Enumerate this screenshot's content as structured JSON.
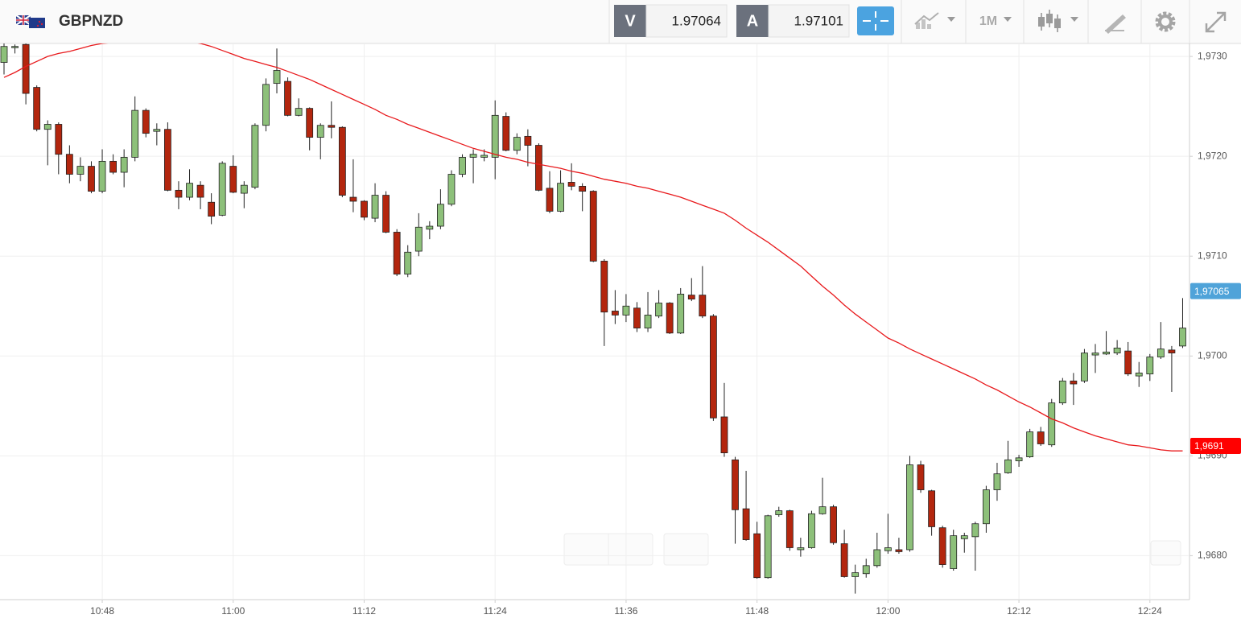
{
  "toolbar": {
    "symbol": "GBPNZD",
    "bid_label": "V",
    "bid": 1.97064,
    "ask_label": "A",
    "ask": 1.97101,
    "timeframe": "1M"
  },
  "chart_data": {
    "type": "candlestick",
    "categories": [
      null,
      null,
      null,
      null,
      null,
      null,
      null,
      null,
      null,
      "10:48",
      null,
      null,
      null,
      null,
      null,
      null,
      null,
      null,
      null,
      null,
      null,
      "11:00",
      null,
      null,
      null,
      null,
      null,
      null,
      null,
      null,
      null,
      null,
      null,
      "11:12",
      null,
      null,
      null,
      null,
      null,
      null,
      null,
      null,
      null,
      null,
      null,
      "11:24",
      null,
      null,
      null,
      null,
      null,
      null,
      null,
      null,
      null,
      null,
      null,
      "11:36",
      null,
      null,
      null,
      null,
      null,
      null,
      null,
      null,
      null,
      null,
      null,
      "11:48",
      null,
      null,
      null,
      null,
      null,
      null,
      null,
      null,
      null,
      null,
      null,
      "12:00",
      null,
      null,
      null,
      null,
      null,
      null,
      null,
      null,
      null,
      null,
      null,
      "12:12",
      null,
      null,
      null,
      null,
      null,
      null,
      null,
      null,
      null,
      null,
      null,
      "12:24",
      null,
      null,
      null
    ],
    "open": [
      1.97294,
      1.9731,
      1.97312,
      1.97269,
      1.97227,
      1.97232,
      1.97202,
      1.97182,
      1.9719,
      1.97165,
      1.97195,
      1.97184,
      1.97199,
      1.97246,
      1.97225,
      1.97227,
      1.97166,
      1.97159,
      1.97171,
      1.97154,
      1.97141,
      1.9719,
      1.97163,
      1.97169,
      1.97231,
      1.97273,
      1.97275,
      1.97241,
      1.97248,
      1.97219,
      1.97231,
      1.97229,
      1.97159,
      1.97155,
      1.97138,
      1.97161,
      1.97124,
      1.97082,
      1.97105,
      1.97127,
      1.9713,
      1.97152,
      1.97182,
      1.97199,
      1.97199,
      1.97199,
      1.9724,
      1.97206,
      1.9722,
      1.97211,
      1.97168,
      1.97145,
      1.97174,
      1.9717,
      1.97165,
      1.97095,
      1.97045,
      1.97041,
      1.97048,
      1.97028,
      1.9704,
      1.97053,
      1.97023,
      1.97061,
      1.97061,
      1.9704,
      1.96939,
      1.96896,
      1.96847,
      1.96822,
      1.96778,
      1.96841,
      1.96845,
      1.96806,
      1.96808,
      1.96842,
      1.96849,
      1.96812,
      1.96779,
      1.96782,
      1.9679,
      1.96805,
      1.96806,
      1.96806,
      1.96891,
      1.96865,
      1.96828,
      1.96787,
      1.96817,
      1.96819,
      1.96832,
      1.96866,
      1.96883,
      1.96895,
      1.96899,
      1.96924,
      1.96911,
      1.96953,
      1.96975,
      1.96975,
      1.97001,
      1.97002,
      1.97003,
      1.97005,
      1.9698,
      1.96982,
      1.96999,
      1.97006,
      1.9701
    ],
    "high": [
      1.97315,
      1.97312,
      1.97318,
      1.97271,
      1.97236,
      1.97234,
      1.97211,
      1.97199,
      1.97195,
      1.97207,
      1.97202,
      1.97207,
      1.9726,
      1.97248,
      1.97233,
      1.97234,
      1.97175,
      1.97187,
      1.97175,
      1.97163,
      1.97195,
      1.97201,
      1.97175,
      1.97233,
      1.97278,
      1.97308,
      1.97279,
      1.97258,
      1.97249,
      1.97233,
      1.97255,
      1.9723,
      1.97197,
      1.97156,
      1.97173,
      1.97165,
      1.97127,
      1.97111,
      1.97143,
      1.97135,
      1.97167,
      1.97186,
      1.97202,
      1.97207,
      1.97207,
      1.97256,
      1.97244,
      1.97223,
      1.97227,
      1.97213,
      1.97185,
      1.97186,
      1.97193,
      1.97173,
      1.97166,
      1.97097,
      1.97066,
      1.97062,
      1.97054,
      1.97064,
      1.97066,
      1.97054,
      1.97068,
      1.97078,
      1.9709,
      1.97042,
      1.96973,
      1.96899,
      1.96885,
      1.96834,
      1.96841,
      1.96849,
      1.96846,
      1.96818,
      1.96845,
      1.96878,
      1.96851,
      1.96826,
      1.96791,
      1.96797,
      1.96823,
      1.96842,
      1.96818,
      1.969,
      1.96895,
      1.96866,
      1.9683,
      1.96826,
      1.96823,
      1.96834,
      1.9687,
      1.96893,
      1.96915,
      1.96901,
      1.96927,
      1.96929,
      1.96957,
      1.96978,
      1.96983,
      1.97007,
      1.97012,
      1.97025,
      1.97016,
      1.97014,
      1.96994,
      1.97002,
      1.97034,
      1.9701,
      1.97058
    ],
    "low": [
      1.97282,
      1.97303,
      1.97252,
      1.97225,
      1.97191,
      1.97182,
      1.97173,
      1.97175,
      1.97163,
      1.97163,
      1.97182,
      1.97169,
      1.97195,
      1.97219,
      1.97211,
      1.97165,
      1.97147,
      1.97156,
      1.97147,
      1.97132,
      1.9714,
      1.97163,
      1.97148,
      1.97167,
      1.97225,
      1.97263,
      1.9724,
      1.9724,
      1.97206,
      1.97197,
      1.97218,
      1.97159,
      1.97144,
      1.97136,
      1.97134,
      1.97123,
      1.9708,
      1.97079,
      1.971,
      1.97117,
      1.97127,
      1.9715,
      1.97179,
      1.97173,
      1.97195,
      1.97177,
      1.97205,
      1.97202,
      1.9719,
      1.97165,
      1.97143,
      1.97144,
      1.97166,
      1.97145,
      1.97094,
      1.9701,
      1.97032,
      1.97034,
      1.97024,
      1.97024,
      1.97038,
      1.97022,
      1.97022,
      1.97055,
      1.97038,
      1.96935,
      1.96899,
      1.96812,
      1.96815,
      1.96777,
      1.96777,
      1.96839,
      1.96805,
      1.96799,
      1.96807,
      1.96841,
      1.96811,
      1.96778,
      1.96762,
      1.96778,
      1.96788,
      1.96802,
      1.96802,
      1.96804,
      1.96863,
      1.9682,
      1.96788,
      1.96785,
      1.96803,
      1.96785,
      1.96823,
      1.96855,
      1.96882,
      1.96889,
      1.96898,
      1.9691,
      1.96909,
      1.96951,
      1.96951,
      1.96973,
      1.96983,
      1.97001,
      1.97001,
      1.9698,
      1.96969,
      1.96975,
      1.96997,
      1.96964,
      1.97008
    ],
    "close": [
      1.9731,
      1.9731,
      1.97263,
      1.97227,
      1.97232,
      1.97202,
      1.97182,
      1.9719,
      1.97165,
      1.97195,
      1.97184,
      1.97199,
      1.97246,
      1.97223,
      1.97227,
      1.97166,
      1.97159,
      1.97173,
      1.97159,
      1.9714,
      1.97193,
      1.97164,
      1.97171,
      1.97231,
      1.97272,
      1.97286,
      1.97241,
      1.97248,
      1.97219,
      1.97231,
      1.97229,
      1.97161,
      1.97155,
      1.97139,
      1.97161,
      1.97124,
      1.97082,
      1.97104,
      1.97129,
      1.9713,
      1.97152,
      1.97182,
      1.97199,
      1.97202,
      1.97201,
      1.97241,
      1.97206,
      1.97219,
      1.97211,
      1.97166,
      1.97145,
      1.97173,
      1.9717,
      1.97165,
      1.97095,
      1.97044,
      1.97041,
      1.9705,
      1.97028,
      1.97041,
      1.97053,
      1.97023,
      1.97062,
      1.97057,
      1.9704,
      1.96938,
      1.96903,
      1.96846,
      1.96816,
      1.96778,
      1.9684,
      1.96845,
      1.96808,
      1.96808,
      1.96842,
      1.96849,
      1.96813,
      1.96779,
      1.96783,
      1.9679,
      1.96806,
      1.96808,
      1.96804,
      1.96891,
      1.96866,
      1.96829,
      1.96791,
      1.9682,
      1.9682,
      1.96832,
      1.96866,
      1.96882,
      1.96896,
      1.96898,
      1.96924,
      1.96912,
      1.96953,
      1.96975,
      1.96972,
      1.97003,
      1.97003,
      1.97004,
      1.97008,
      1.96982,
      1.96983,
      1.96999,
      1.97007,
      1.97003,
      1.97028
    ],
    "up_color": "#8dc07a",
    "down_color": "#b3260e",
    "ma": {
      "color": "#e8191c",
      "values": [
        1.97279,
        1.97284,
        1.9729,
        1.97295,
        1.973,
        1.97303,
        1.97305,
        1.97308,
        1.97311,
        1.97313,
        1.97314,
        1.97316,
        1.97318,
        1.97319,
        1.9732,
        1.97318,
        1.97317,
        1.97315,
        1.97313,
        1.9731,
        1.97306,
        1.97302,
        1.97298,
        1.97295,
        1.97292,
        1.97289,
        1.97285,
        1.97281,
        1.97277,
        1.97272,
        1.97267,
        1.97262,
        1.97257,
        1.97252,
        1.97247,
        1.97241,
        1.97237,
        1.97232,
        1.97228,
        1.97224,
        1.9722,
        1.97216,
        1.97212,
        1.97208,
        1.97205,
        1.97202,
        1.97199,
        1.97197,
        1.97194,
        1.97192,
        1.9719,
        1.97188,
        1.97185,
        1.97183,
        1.9718,
        1.97177,
        1.97175,
        1.97173,
        1.9717,
        1.97168,
        1.97165,
        1.97162,
        1.97159,
        1.97155,
        1.97151,
        1.97147,
        1.97143,
        1.97136,
        1.97128,
        1.97121,
        1.97114,
        1.97106,
        1.97098,
        1.9709,
        1.9708,
        1.9707,
        1.97061,
        1.97051,
        1.97042,
        1.97034,
        1.97026,
        1.97018,
        1.97013,
        1.97007,
        1.97002,
        1.96997,
        1.96992,
        1.96987,
        1.96982,
        1.96977,
        1.96971,
        1.96966,
        1.9696,
        1.96954,
        1.96949,
        1.96943,
        1.96937,
        1.96933,
        1.96928,
        1.96924,
        1.9692,
        1.96917,
        1.96914,
        1.96911,
        1.9691,
        1.96908,
        1.96906,
        1.96905,
        1.96905
      ]
    },
    "ylim": [
      1.96756,
      1.97313
    ],
    "yticks": [
      {
        "value": 1.968,
        "label": "1,9680"
      },
      {
        "value": 1.969,
        "label": "1,9690"
      },
      {
        "value": 1.97,
        "label": "1,9700"
      },
      {
        "value": 1.971,
        "label": "1,9710"
      },
      {
        "value": 1.972,
        "label": "1,9720"
      },
      {
        "value": 1.973,
        "label": "1,9730"
      }
    ],
    "grid": true,
    "price_labels": [
      {
        "value": 1.97065,
        "label": "1,97065",
        "color": "#4fa3d9"
      },
      {
        "value": 1.9691,
        "label": "1,9691",
        "color": "#ff0000"
      }
    ]
  }
}
